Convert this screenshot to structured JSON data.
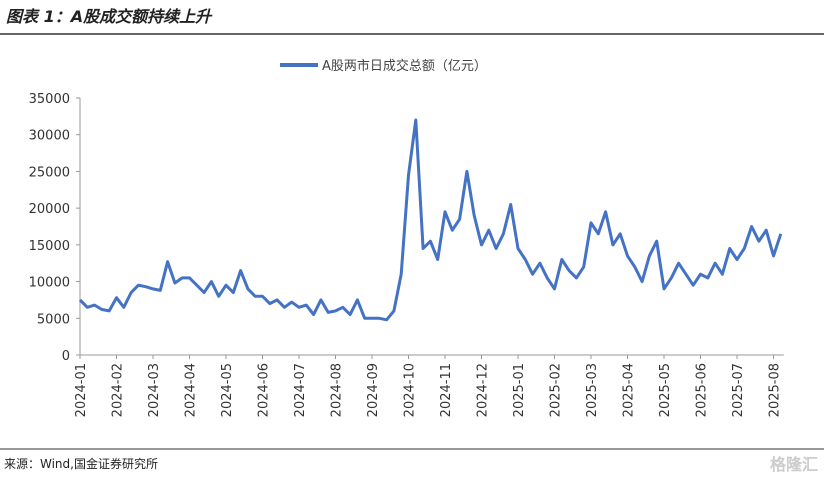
{
  "header": {
    "title": "图表 1：A股成交额持续上升"
  },
  "chart_data": {
    "type": "line",
    "categories": [
      "2024-01",
      null,
      null,
      null,
      null,
      "2024-02",
      null,
      null,
      null,
      null,
      "2024-03",
      null,
      null,
      null,
      null,
      "2024-04",
      null,
      null,
      null,
      null,
      "2024-05",
      null,
      null,
      null,
      null,
      "2024-06",
      null,
      null,
      null,
      null,
      "2024-07",
      null,
      null,
      null,
      null,
      "2024-08",
      null,
      null,
      null,
      null,
      "2024-09",
      null,
      null,
      null,
      null,
      "2024-10",
      null,
      null,
      null,
      null,
      "2024-11",
      null,
      null,
      null,
      null,
      "2024-12",
      null,
      null,
      null,
      null,
      "2025-01",
      null,
      null,
      null,
      null,
      "2025-02",
      null,
      null,
      null,
      null,
      "2025-03",
      null,
      null,
      null,
      null,
      "2025-04",
      null,
      null,
      null,
      null,
      "2025-05",
      null,
      null,
      null,
      null,
      "2025-06",
      null,
      null,
      null,
      null,
      "2025-07",
      null,
      null,
      null,
      null,
      "2025-08",
      null
    ],
    "series": [
      {
        "name": "A股两市日成交总额（亿元）",
        "color": "#4472c4",
        "values": [
          7500,
          6500,
          6800,
          6200,
          6000,
          7800,
          6500,
          8500,
          9500,
          9300,
          9000,
          8800,
          12700,
          9800,
          10500,
          10500,
          9500,
          8500,
          10000,
          8000,
          9500,
          8500,
          11500,
          9000,
          8000,
          8000,
          7000,
          7500,
          6500,
          7200,
          6500,
          6800,
          5500,
          7500,
          5800,
          6000,
          6500,
          5500,
          7500,
          5000,
          5000,
          5000,
          4800,
          6000,
          11000,
          24500,
          32000,
          14500,
          15500,
          13000,
          19500,
          17000,
          18500,
          25000,
          19000,
          15000,
          17000,
          14500,
          16500,
          20500,
          14500,
          13000,
          11000,
          12500,
          10500,
          9000,
          13000,
          11500,
          10500,
          12000,
          18000,
          16500,
          19500,
          15000,
          16500,
          13500,
          12000,
          10000,
          13500,
          15500,
          9000,
          10500,
          12500,
          11000,
          9500,
          11000,
          10500,
          12500,
          11000,
          14500,
          13000,
          14500,
          17500,
          15500,
          17000,
          13500,
          16500
        ]
      }
    ],
    "ylim": [
      0,
      35000
    ],
    "yticks": [
      0,
      5000,
      10000,
      15000,
      20000,
      25000,
      30000,
      35000
    ],
    "legend": "top"
  },
  "footer": {
    "source": "来源：Wind,国金证券研究所",
    "watermark": "格隆汇"
  }
}
